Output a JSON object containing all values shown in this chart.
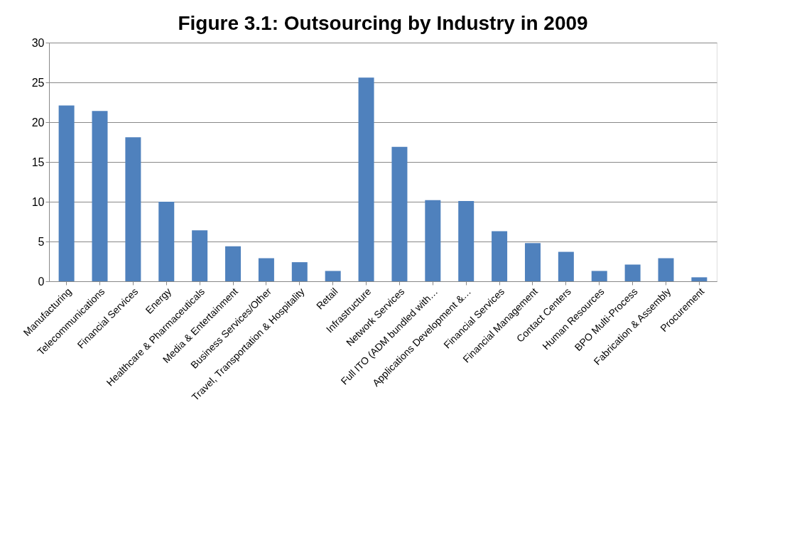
{
  "chart_data": {
    "type": "bar",
    "title": "Figure 3.1: Outsourcing by Industry in 2009",
    "categories": [
      "Manufacturing",
      "Telecommunications",
      "Financial Services",
      "Energy",
      "Healthcare & Pharmaceuticals",
      "Media & Entertainment",
      "Business Services/Other",
      "Travel, Transportation & Hospitality",
      "Retail",
      "Infrastructure",
      "Network Services",
      "Full ITO (ADM bundled with…",
      "Applications Development &…",
      "Financial Services",
      "Financial Management",
      "Contact Centers",
      "Human Resources",
      "BPO Multi-Process",
      "Fabrication & Assembly",
      "Procurement"
    ],
    "values": [
      22.1,
      21.4,
      18.1,
      10.0,
      6.4,
      4.4,
      2.9,
      2.4,
      1.3,
      25.6,
      16.9,
      10.2,
      10.1,
      6.3,
      4.8,
      3.7,
      1.3,
      2.1,
      2.9,
      0.5
    ],
    "color": "#4f81bd",
    "ylim": [
      0,
      30
    ],
    "yticks": [
      0,
      5,
      10,
      15,
      20,
      25,
      30
    ],
    "grid": "y"
  }
}
